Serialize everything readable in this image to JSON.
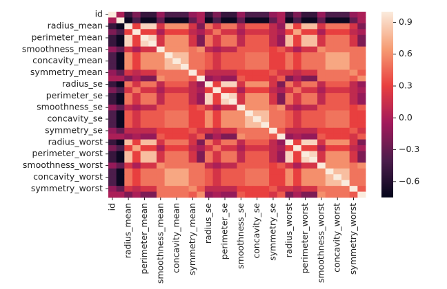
{
  "chart_data": {
    "type": "heatmap",
    "categories": [
      "id",
      null,
      "radius_mean",
      null,
      "perimeter_mean",
      null,
      "smoothness_mean",
      null,
      "concavity_mean",
      null,
      "symmetry_mean",
      null,
      "radius_se",
      null,
      "perimeter_se",
      null,
      "smoothness_se",
      null,
      "concavity_se",
      null,
      "symmetry_se",
      null,
      "radius_worst",
      null,
      "perimeter_worst",
      null,
      "smoothness_worst",
      null,
      "concavity_worst",
      null,
      "symmetry_worst",
      null
    ],
    "clim": [
      -0.75,
      1
    ],
    "cticks": [
      {
        "value": -0.6,
        "label": "−0.6"
      },
      {
        "value": -0.3,
        "label": "−0.3"
      },
      {
        "value": 0,
        "label": "0.0"
      },
      0.3,
      0.6,
      0.9
    ],
    "values": [
      [
        1,
        0,
        -0.5,
        -0.2,
        -0.5,
        -0.5,
        -0.1,
        -0.4,
        -0.4,
        -0.4,
        -0.1,
        0,
        -0.5,
        -0.2,
        -0.5,
        -0.5,
        -0.1,
        -0.4,
        -0.4,
        -0.4,
        -0.1,
        0,
        -0.5,
        -0.2,
        -0.5,
        -0.5,
        -0.1,
        -0.4,
        -0.4,
        -0.4,
        -0.1,
        0
      ],
      [
        0,
        1,
        -0.7,
        -0.4,
        -0.7,
        -0.7,
        -0.3,
        -0.7,
        -0.7,
        -0.7,
        -0.3,
        0,
        -0.7,
        -0.4,
        -0.7,
        -0.7,
        -0.3,
        -0.7,
        -0.7,
        -0.7,
        -0.3,
        0,
        -0.7,
        -0.4,
        -0.7,
        -0.7,
        -0.3,
        -0.7,
        -0.7,
        -0.7,
        -0.3,
        0
      ],
      [
        -0.5,
        -0.7,
        1,
        0.3,
        0.9,
        0.9,
        0.2,
        0.6,
        0.6,
        0.6,
        0.2,
        -0.2,
        0.5,
        0.2,
        0.5,
        0.5,
        0.1,
        0.4,
        0.4,
        0.4,
        0.1,
        -0.1,
        0.8,
        0.3,
        0.8,
        0.8,
        0.2,
        0.5,
        0.5,
        0.5,
        0.2,
        -0.2
      ],
      [
        -0.2,
        -0.4,
        0.3,
        1,
        0.3,
        0.3,
        0,
        0.3,
        0.3,
        0.3,
        0.1,
        0,
        0.2,
        0.5,
        0.2,
        0.2,
        0,
        0.2,
        0.2,
        0.2,
        0.1,
        0,
        0.3,
        0.7,
        0.3,
        0.3,
        0,
        0.3,
        0.3,
        0.3,
        0.1,
        0
      ],
      [
        -0.5,
        -0.7,
        0.9,
        0.3,
        1,
        0.9,
        0.2,
        0.6,
        0.6,
        0.6,
        0.2,
        -0.2,
        0.5,
        0.2,
        0.5,
        0.5,
        0.1,
        0.4,
        0.4,
        0.4,
        0.1,
        -0.1,
        0.8,
        0.3,
        0.8,
        0.8,
        0.2,
        0.5,
        0.5,
        0.5,
        0.2,
        -0.2
      ],
      [
        -0.5,
        -0.7,
        0.9,
        0.3,
        0.9,
        1,
        0.2,
        0.6,
        0.6,
        0.6,
        0.2,
        -0.2,
        0.5,
        0.2,
        0.5,
        0.5,
        0.1,
        0.4,
        0.4,
        0.4,
        0.1,
        -0.1,
        0.8,
        0.3,
        0.8,
        0.8,
        0.2,
        0.5,
        0.5,
        0.5,
        0.2,
        -0.2
      ],
      [
        -0.1,
        -0.3,
        0.2,
        0,
        0.2,
        0.2,
        1,
        0.6,
        0.6,
        0.6,
        0.5,
        0.6,
        0.1,
        0,
        0.1,
        0.1,
        0.4,
        0.4,
        0.4,
        0.4,
        0.3,
        0.4,
        0.2,
        0,
        0.2,
        0.2,
        0.6,
        0.5,
        0.5,
        0.5,
        0.5,
        0.5
      ],
      [
        -0.4,
        -0.7,
        0.6,
        0.3,
        0.6,
        0.6,
        0.6,
        1,
        0.8,
        0.8,
        0.5,
        0.5,
        0.4,
        0.2,
        0.4,
        0.4,
        0.4,
        0.5,
        0.5,
        0.5,
        0.3,
        0.3,
        0.5,
        0.3,
        0.5,
        0.5,
        0.5,
        0.7,
        0.7,
        0.7,
        0.5,
        0.5
      ],
      [
        -0.4,
        -0.7,
        0.6,
        0.3,
        0.6,
        0.6,
        0.6,
        0.8,
        1,
        0.8,
        0.5,
        0.5,
        0.4,
        0.2,
        0.4,
        0.4,
        0.4,
        0.5,
        0.5,
        0.5,
        0.3,
        0.3,
        0.5,
        0.3,
        0.5,
        0.5,
        0.5,
        0.7,
        0.7,
        0.7,
        0.5,
        0.5
      ],
      [
        -0.4,
        -0.7,
        0.6,
        0.3,
        0.6,
        0.6,
        0.6,
        0.8,
        0.8,
        1,
        0.5,
        0.5,
        0.4,
        0.2,
        0.4,
        0.4,
        0.4,
        0.5,
        0.5,
        0.5,
        0.3,
        0.3,
        0.5,
        0.3,
        0.5,
        0.5,
        0.5,
        0.7,
        0.7,
        0.7,
        0.5,
        0.5
      ],
      [
        -0.1,
        -0.3,
        0.2,
        0.1,
        0.2,
        0.2,
        0.5,
        0.5,
        0.5,
        0.5,
        1,
        0.4,
        0.1,
        0.1,
        0.1,
        0.1,
        0.3,
        0.3,
        0.3,
        0.3,
        0.4,
        0.2,
        0.2,
        0.1,
        0.2,
        0.2,
        0.5,
        0.5,
        0.5,
        0.5,
        0.6,
        0.4
      ],
      [
        0,
        0,
        -0.2,
        0,
        -0.2,
        -0.2,
        0.6,
        0.5,
        0.5,
        0.5,
        0.4,
        1,
        -0.1,
        0,
        -0.1,
        -0.1,
        0.4,
        0.3,
        0.3,
        0.3,
        0.2,
        0.4,
        -0.2,
        0,
        -0.2,
        -0.2,
        0.5,
        0.5,
        0.5,
        0.5,
        0.4,
        0.6
      ],
      [
        -0.5,
        -0.7,
        0.5,
        0.2,
        0.5,
        0.5,
        0.1,
        0.4,
        0.4,
        0.4,
        0.1,
        -0.1,
        1,
        0.3,
        0.9,
        0.9,
        0.2,
        0.6,
        0.6,
        0.6,
        0.2,
        -0.2,
        0.5,
        0.2,
        0.5,
        0.5,
        0.1,
        0.4,
        0.4,
        0.4,
        0.1,
        -0.1
      ],
      [
        -0.2,
        -0.4,
        0.2,
        0.5,
        0.2,
        0.2,
        0,
        0.2,
        0.2,
        0.2,
        0.1,
        0,
        0.3,
        1,
        0.3,
        0.3,
        0,
        0.3,
        0.3,
        0.3,
        0.1,
        0,
        0.2,
        0.5,
        0.2,
        0.2,
        0,
        0.2,
        0.2,
        0.2,
        0.1,
        0
      ],
      [
        -0.5,
        -0.7,
        0.5,
        0.2,
        0.5,
        0.5,
        0.1,
        0.4,
        0.4,
        0.4,
        0.1,
        -0.1,
        0.9,
        0.3,
        1,
        0.9,
        0.2,
        0.6,
        0.6,
        0.6,
        0.2,
        -0.2,
        0.5,
        0.2,
        0.5,
        0.5,
        0.1,
        0.4,
        0.4,
        0.4,
        0.1,
        -0.1
      ],
      [
        -0.5,
        -0.7,
        0.5,
        0.2,
        0.5,
        0.5,
        0.1,
        0.4,
        0.4,
        0.4,
        0.1,
        -0.1,
        0.9,
        0.3,
        0.9,
        1,
        0.2,
        0.6,
        0.6,
        0.6,
        0.2,
        -0.2,
        0.5,
        0.2,
        0.5,
        0.5,
        0.1,
        0.4,
        0.4,
        0.4,
        0.1,
        -0.1
      ],
      [
        -0.1,
        -0.3,
        0.1,
        0,
        0.1,
        0.1,
        0.4,
        0.4,
        0.4,
        0.4,
        0.3,
        0.4,
        0.2,
        0,
        0.2,
        0.2,
        1,
        0.6,
        0.6,
        0.6,
        0.5,
        0.6,
        0.1,
        0,
        0.1,
        0.1,
        0.4,
        0.4,
        0.4,
        0.4,
        0.3,
        0.4
      ],
      [
        -0.4,
        -0.7,
        0.4,
        0.2,
        0.4,
        0.4,
        0.4,
        0.5,
        0.5,
        0.5,
        0.3,
        0.3,
        0.6,
        0.3,
        0.6,
        0.6,
        0.6,
        1,
        0.8,
        0.8,
        0.5,
        0.5,
        0.4,
        0.2,
        0.4,
        0.4,
        0.4,
        0.5,
        0.5,
        0.5,
        0.3,
        0.3
      ],
      [
        -0.4,
        -0.7,
        0.4,
        0.2,
        0.4,
        0.4,
        0.4,
        0.5,
        0.5,
        0.5,
        0.3,
        0.3,
        0.6,
        0.3,
        0.6,
        0.6,
        0.6,
        0.8,
        1,
        0.8,
        0.5,
        0.5,
        0.4,
        0.2,
        0.4,
        0.4,
        0.4,
        0.5,
        0.5,
        0.5,
        0.3,
        0.3
      ],
      [
        -0.4,
        -0.7,
        0.4,
        0.2,
        0.4,
        0.4,
        0.4,
        0.5,
        0.5,
        0.5,
        0.3,
        0.3,
        0.6,
        0.3,
        0.6,
        0.6,
        0.6,
        0.8,
        0.8,
        1,
        0.5,
        0.5,
        0.4,
        0.2,
        0.4,
        0.4,
        0.4,
        0.5,
        0.5,
        0.5,
        0.3,
        0.3
      ],
      [
        -0.1,
        -0.3,
        0.1,
        0.1,
        0.1,
        0.1,
        0.3,
        0.3,
        0.3,
        0.3,
        0.4,
        0.2,
        0.2,
        0.1,
        0.2,
        0.2,
        0.5,
        0.5,
        0.5,
        0.5,
        1,
        0.4,
        0.1,
        0.1,
        0.1,
        0.1,
        0.3,
        0.3,
        0.3,
        0.3,
        0.4,
        0.2
      ],
      [
        0,
        0,
        -0.1,
        0,
        -0.1,
        -0.1,
        0.4,
        0.3,
        0.3,
        0.3,
        0.2,
        0.4,
        -0.2,
        0,
        -0.2,
        -0.2,
        0.6,
        0.5,
        0.5,
        0.5,
        0.4,
        1,
        -0.1,
        0,
        -0.1,
        -0.1,
        0.4,
        0.3,
        0.3,
        0.3,
        0.2,
        0.4
      ],
      [
        -0.5,
        -0.7,
        0.8,
        0.3,
        0.8,
        0.8,
        0.2,
        0.5,
        0.5,
        0.5,
        0.2,
        -0.2,
        0.5,
        0.2,
        0.5,
        0.5,
        0.1,
        0.4,
        0.4,
        0.4,
        0.1,
        -0.1,
        1,
        0.3,
        0.9,
        0.9,
        0.2,
        0.6,
        0.6,
        0.6,
        0.2,
        -0.2
      ],
      [
        -0.2,
        -0.4,
        0.3,
        0.7,
        0.3,
        0.3,
        0,
        0.3,
        0.3,
        0.3,
        0.1,
        0,
        0.2,
        0.5,
        0.2,
        0.2,
        0,
        0.2,
        0.2,
        0.2,
        0.1,
        0,
        0.3,
        1,
        0.3,
        0.3,
        0,
        0.3,
        0.3,
        0.3,
        0.1,
        0
      ],
      [
        -0.5,
        -0.7,
        0.8,
        0.3,
        0.8,
        0.8,
        0.2,
        0.5,
        0.5,
        0.5,
        0.2,
        -0.2,
        0.5,
        0.2,
        0.5,
        0.5,
        0.1,
        0.4,
        0.4,
        0.4,
        0.1,
        -0.1,
        0.9,
        0.3,
        1,
        0.9,
        0.2,
        0.6,
        0.6,
        0.6,
        0.2,
        -0.2
      ],
      [
        -0.5,
        -0.7,
        0.8,
        0.3,
        0.8,
        0.8,
        0.2,
        0.5,
        0.5,
        0.5,
        0.2,
        -0.2,
        0.5,
        0.2,
        0.5,
        0.5,
        0.1,
        0.4,
        0.4,
        0.4,
        0.1,
        -0.1,
        0.9,
        0.3,
        0.9,
        1,
        0.2,
        0.6,
        0.6,
        0.6,
        0.2,
        -0.2
      ],
      [
        -0.1,
        -0.3,
        0.2,
        0,
        0.2,
        0.2,
        0.6,
        0.5,
        0.5,
        0.5,
        0.5,
        0.5,
        0.1,
        0,
        0.1,
        0.1,
        0.4,
        0.4,
        0.4,
        0.4,
        0.3,
        0.4,
        0.2,
        0,
        0.2,
        0.2,
        1,
        0.6,
        0.6,
        0.6,
        0.5,
        0.6
      ],
      [
        -0.4,
        -0.7,
        0.5,
        0.3,
        0.5,
        0.5,
        0.5,
        0.7,
        0.7,
        0.7,
        0.5,
        0.5,
        0.4,
        0.2,
        0.4,
        0.4,
        0.4,
        0.5,
        0.5,
        0.5,
        0.3,
        0.3,
        0.6,
        0.3,
        0.6,
        0.6,
        0.6,
        1,
        0.8,
        0.8,
        0.5,
        0.5
      ],
      [
        -0.4,
        -0.7,
        0.5,
        0.3,
        0.5,
        0.5,
        0.5,
        0.7,
        0.7,
        0.7,
        0.5,
        0.5,
        0.4,
        0.2,
        0.4,
        0.4,
        0.4,
        0.5,
        0.5,
        0.5,
        0.3,
        0.3,
        0.6,
        0.3,
        0.6,
        0.6,
        0.6,
        0.8,
        1,
        0.8,
        0.5,
        0.5
      ],
      [
        -0.4,
        -0.7,
        0.5,
        0.3,
        0.5,
        0.5,
        0.5,
        0.7,
        0.7,
        0.7,
        0.5,
        0.5,
        0.4,
        0.2,
        0.4,
        0.4,
        0.4,
        0.5,
        0.5,
        0.5,
        0.3,
        0.3,
        0.6,
        0.3,
        0.6,
        0.6,
        0.6,
        0.8,
        0.8,
        1,
        0.5,
        0.5
      ],
      [
        -0.1,
        -0.3,
        0.2,
        0.1,
        0.2,
        0.2,
        0.5,
        0.5,
        0.5,
        0.5,
        0.6,
        0.4,
        0.1,
        0.1,
        0.1,
        0.1,
        0.3,
        0.3,
        0.3,
        0.3,
        0.4,
        0.2,
        0.2,
        0.1,
        0.2,
        0.2,
        0.5,
        0.5,
        0.5,
        0.5,
        1,
        0.4
      ],
      [
        0,
        0,
        -0.2,
        0,
        -0.2,
        -0.2,
        0.5,
        0.5,
        0.5,
        0.5,
        0.4,
        0.6,
        -0.1,
        0,
        -0.1,
        -0.1,
        0.4,
        0.3,
        0.3,
        0.3,
        0.2,
        0.4,
        -0.2,
        0,
        -0.2,
        -0.2,
        0.6,
        0.5,
        0.5,
        0.5,
        0.4,
        1
      ]
    ]
  }
}
